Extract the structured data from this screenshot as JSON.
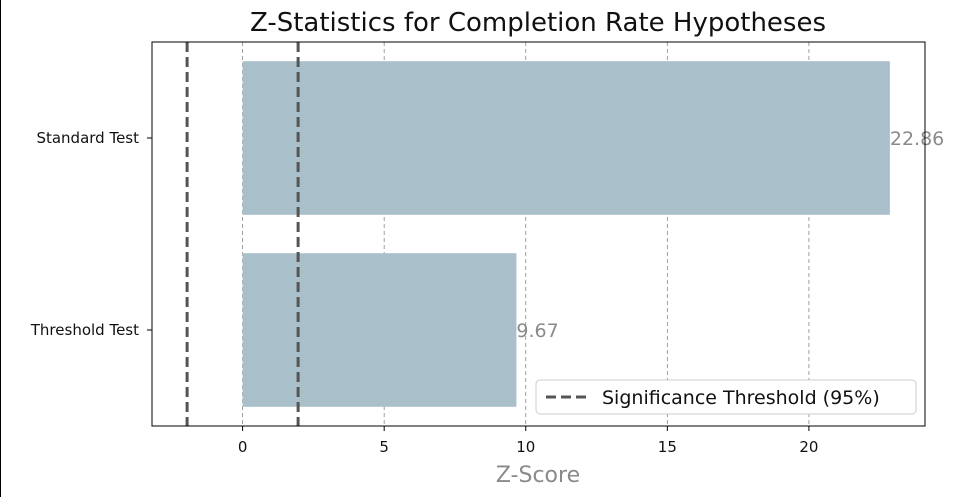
{
  "chart_data": {
    "type": "bar",
    "orientation": "horizontal",
    "title": "Z-Statistics for Completion Rate Hypotheses",
    "xlabel": "Z-Score",
    "ylabel": "",
    "categories": [
      "Standard Test",
      "Threshold Test"
    ],
    "values": [
      22.86,
      9.67
    ],
    "value_labels": [
      "22.86",
      "9.67"
    ],
    "xlim": [
      -3.2,
      24.1
    ],
    "xticks": [
      0,
      5,
      10,
      15,
      20
    ],
    "xtick_labels": [
      "0",
      "5",
      "10",
      "15",
      "20"
    ],
    "grid": "x, dashed",
    "reference_lines": [
      {
        "x": -1.96,
        "style": "dashed"
      },
      {
        "x": 1.96,
        "style": "dashed"
      }
    ],
    "legend": {
      "label": "Significance Threshold (95%)",
      "placement": "lower-right"
    },
    "colors": {
      "bar": "#a9c0cb",
      "threshold_line": "#555555",
      "grid": "#888888",
      "value_label": "#8a8a8a",
      "xlabel": "#8a8a8a",
      "text": "#111111"
    }
  }
}
